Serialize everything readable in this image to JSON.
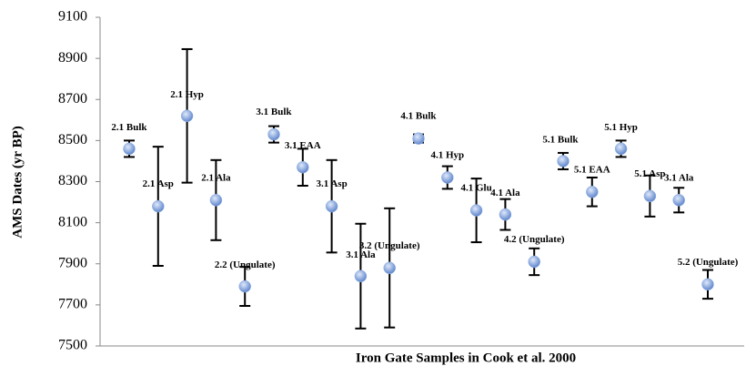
{
  "chart_data": {
    "type": "errorbar",
    "y_label": "AMS Dates (yr BP)",
    "x_label": "Iron Gate Samples in Cook et al. 2000",
    "labels": [
      "2.1 Bulk",
      "2.1 Asp",
      "2.1 Hyp",
      "2.1 Ala",
      "2.2 (Ungulate)",
      "3.1 Bulk",
      "3.1 EAA",
      "3.1 Asp",
      "3.1 Ala",
      "3.2 (Ungulate)",
      "4.1 Bulk",
      "4.1 Hyp",
      "4.1 Glu",
      "4.1 Ala",
      "4.2 (Ungulate)",
      "5.1 Bulk",
      "5.1 EAA",
      "5.1 Hyp",
      "5.1 Asp",
      "3.1 Ala",
      "5.2 (Ungulate)"
    ],
    "values": [
      8460,
      8180,
      8620,
      8210,
      7790,
      8530,
      8370,
      8180,
      7840,
      7880,
      8510,
      8320,
      8160,
      8140,
      7910,
      8400,
      8250,
      8460,
      8230,
      8210,
      7800
    ],
    "errors": [
      40,
      290,
      325,
      195,
      95,
      40,
      90,
      225,
      255,
      290,
      20,
      55,
      155,
      75,
      65,
      40,
      70,
      40,
      100,
      60,
      70
    ],
    "color": "#8fb0e6",
    "ylim": [
      7500,
      9100
    ],
    "yticks": [
      7500,
      7700,
      7900,
      8100,
      8300,
      8500,
      8700,
      8900,
      9100
    ]
  }
}
